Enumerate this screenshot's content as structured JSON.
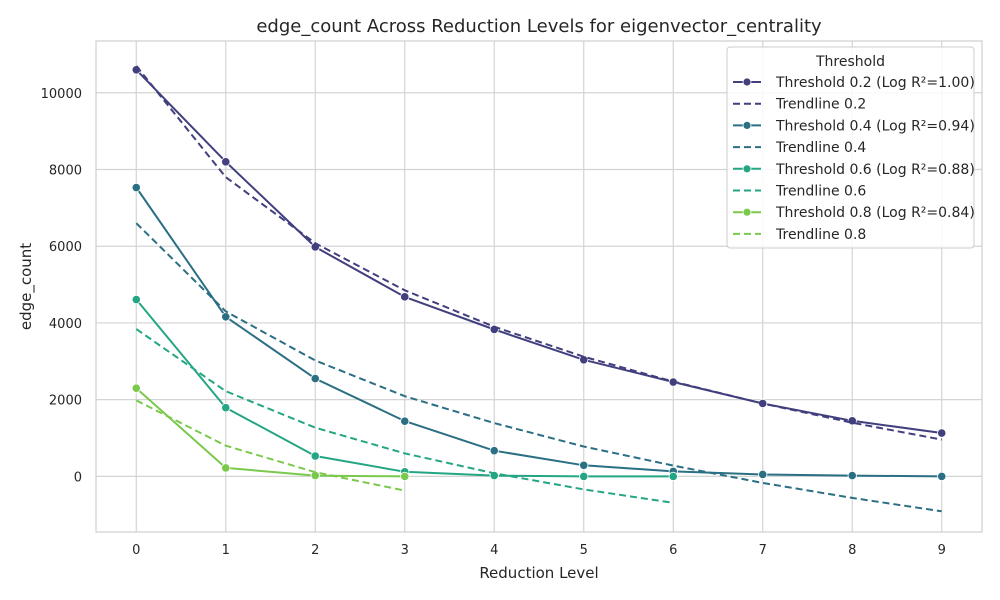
{
  "chart_data": {
    "type": "line",
    "title": "edge_count Across Reduction Levels for eigenvector_centrality",
    "xlabel": "Reduction Level",
    "ylabel": "edge_count",
    "xlim": [
      -0.45,
      9.45
    ],
    "ylim": [
      -1450,
      11350
    ],
    "x_ticks": [
      0,
      1,
      2,
      3,
      4,
      5,
      6,
      7,
      8,
      9
    ],
    "y_ticks": [
      0,
      2000,
      4000,
      6000,
      8000,
      10000
    ],
    "grid": true,
    "legend_title": "Threshold",
    "legend_position": "top-right",
    "series": [
      {
        "name": "Threshold 0.2 (Log R²=1.00)",
        "color": "#413f7d",
        "style": "solid-markers",
        "x": [
          0,
          1,
          2,
          3,
          4,
          5,
          6,
          7,
          8,
          9
        ],
        "y": [
          10600,
          8200,
          5980,
          4680,
          3830,
          3040,
          2460,
          1900,
          1450,
          1130
        ]
      },
      {
        "name": "Trendline 0.2",
        "color": "#413f7d",
        "style": "dashed",
        "x": [
          0,
          1,
          2,
          3,
          4,
          5,
          6,
          7,
          8,
          9
        ],
        "y": [
          10700,
          7800,
          6080,
          4850,
          3900,
          3120,
          2470,
          1900,
          1400,
          960
        ]
      },
      {
        "name": "Threshold 0.4 (Log R²=0.94)",
        "color": "#2a6f83",
        "style": "solid-markers",
        "x": [
          0,
          1,
          2,
          3,
          4,
          5,
          6,
          7,
          8,
          9
        ],
        "y": [
          7530,
          4160,
          2550,
          1440,
          670,
          290,
          130,
          50,
          20,
          0
        ]
      },
      {
        "name": "Trendline 0.4",
        "color": "#2a6f83",
        "style": "dashed",
        "x": [
          0,
          1,
          2,
          3,
          4,
          5,
          6,
          7,
          8,
          9
        ],
        "y": [
          6600,
          4300,
          3020,
          2090,
          1390,
          780,
          280,
          -170,
          -560,
          -910
        ]
      },
      {
        "name": "Threshold 0.6 (Log R²=0.88)",
        "color": "#24a684",
        "style": "solid-markers",
        "x": [
          0,
          1,
          2,
          3,
          4,
          5,
          6
        ],
        "y": [
          4610,
          1790,
          530,
          120,
          20,
          0,
          0
        ]
      },
      {
        "name": "Trendline 0.6",
        "color": "#24a684",
        "style": "dashed",
        "x": [
          0,
          1,
          2,
          3,
          4,
          5,
          6
        ],
        "y": [
          3840,
          2220,
          1270,
          600,
          80,
          -340,
          -690
        ]
      },
      {
        "name": "Threshold 0.8 (Log R²=0.84)",
        "color": "#7ac94c",
        "style": "solid-markers",
        "x": [
          0,
          1,
          2,
          3
        ],
        "y": [
          2300,
          220,
          20,
          0
        ]
      },
      {
        "name": "Trendline 0.8",
        "color": "#7ac94c",
        "style": "dashed",
        "x": [
          0,
          1,
          2,
          3
        ],
        "y": [
          1980,
          800,
          110,
          -370
        ]
      }
    ]
  }
}
